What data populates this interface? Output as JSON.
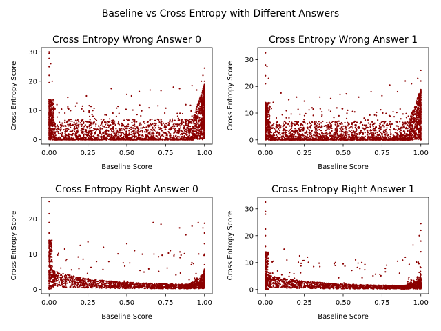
{
  "figure": {
    "suptitle": "Baseline vs Cross Entropy with Different Answers"
  },
  "chart_data": [
    {
      "type": "scatter",
      "title": "Cross Entropy Wrong Answer 0",
      "xlabel": "Baseline Score",
      "ylabel": "Cross Entropy Score",
      "xlim": [
        -0.05,
        1.05
      ],
      "ylim": [
        -1.5,
        31.5
      ],
      "xticks": [
        0.0,
        0.25,
        0.5,
        0.75,
        1.0
      ],
      "xtick_labels": [
        "0.00",
        "0.25",
        "0.50",
        "0.75",
        "1.00"
      ],
      "yticks": [
        0,
        10,
        20,
        30
      ],
      "ytick_labels": [
        "0",
        "10",
        "20",
        "30"
      ],
      "color": "#8b0000",
      "grid": false,
      "legend": "none",
      "points": [
        [
          0.0,
          30.0
        ],
        [
          0.0,
          29.5
        ],
        [
          0.0,
          27.8
        ],
        [
          0.0,
          25.0
        ],
        [
          0.0,
          22.0
        ],
        [
          0.0,
          19.5
        ],
        [
          0.01,
          26.0
        ],
        [
          0.02,
          20.0
        ],
        [
          0.03,
          9.5
        ],
        [
          0.05,
          12.0
        ],
        [
          0.08,
          10.5
        ],
        [
          0.12,
          14.5
        ],
        [
          0.18,
          12.5
        ],
        [
          0.24,
          15.0
        ],
        [
          0.3,
          7.0
        ],
        [
          0.36,
          8.5
        ],
        [
          0.4,
          17.5
        ],
        [
          0.45,
          9.0
        ],
        [
          0.5,
          15.5
        ],
        [
          0.53,
          15.0
        ],
        [
          0.58,
          16.5
        ],
        [
          0.65,
          17.0
        ],
        [
          0.72,
          16.8
        ],
        [
          0.8,
          18.0
        ],
        [
          0.84,
          17.5
        ],
        [
          0.88,
          12.0
        ],
        [
          0.92,
          18.5
        ],
        [
          0.95,
          17.0
        ],
        [
          0.98,
          20.0
        ],
        [
          0.99,
          22.0
        ],
        [
          1.0,
          24.5
        ],
        [
          1.0,
          20.0
        ],
        [
          1.0,
          17.0
        ],
        [
          1.0,
          14.0
        ],
        [
          0.15,
          3.0
        ],
        [
          0.3,
          2.0
        ],
        [
          0.45,
          2.5
        ],
        [
          0.6,
          3.0
        ],
        [
          0.75,
          3.5
        ],
        [
          0.9,
          5.5
        ]
      ]
    },
    {
      "type": "scatter",
      "title": "Cross Entropy Wrong Answer 1",
      "xlabel": "Baseline Score",
      "ylabel": "Cross Entropy Score",
      "xlim": [
        -0.05,
        1.05
      ],
      "ylim": [
        -1.6,
        34.5
      ],
      "xticks": [
        0.0,
        0.25,
        0.5,
        0.75,
        1.0
      ],
      "xtick_labels": [
        "0.00",
        "0.25",
        "0.50",
        "0.75",
        "1.00"
      ],
      "yticks": [
        0,
        10,
        20,
        30
      ],
      "ytick_labels": [
        "0",
        "10",
        "20",
        "30"
      ],
      "color": "#8b0000",
      "grid": false,
      "legend": "none",
      "points": [
        [
          0.0,
          32.5
        ],
        [
          0.0,
          28.0
        ],
        [
          0.0,
          24.0
        ],
        [
          0.0,
          21.0
        ],
        [
          0.01,
          27.5
        ],
        [
          0.02,
          23.0
        ],
        [
          0.05,
          14.0
        ],
        [
          0.1,
          17.5
        ],
        [
          0.15,
          15.0
        ],
        [
          0.2,
          16.0
        ],
        [
          0.25,
          14.5
        ],
        [
          0.3,
          12.0
        ],
        [
          0.35,
          16.0
        ],
        [
          0.42,
          15.5
        ],
        [
          0.48,
          17.0
        ],
        [
          0.52,
          17.2
        ],
        [
          0.6,
          16.0
        ],
        [
          0.68,
          18.0
        ],
        [
          0.75,
          16.5
        ],
        [
          0.8,
          20.5
        ],
        [
          0.85,
          18.0
        ],
        [
          0.9,
          22.0
        ],
        [
          0.94,
          21.0
        ],
        [
          0.98,
          23.0
        ],
        [
          1.0,
          26.0
        ],
        [
          1.0,
          22.0
        ],
        [
          1.0,
          18.0
        ],
        [
          0.2,
          3.0
        ],
        [
          0.45,
          2.5
        ],
        [
          0.7,
          3.5
        ],
        [
          0.9,
          6.0
        ]
      ]
    },
    {
      "type": "scatter",
      "title": "Cross Entropy Right Answer 0",
      "xlabel": "Baseline Score",
      "ylabel": "Cross Entropy Score",
      "xlim": [
        -0.05,
        1.05
      ],
      "ylim": [
        -1.25,
        26.2
      ],
      "xticks": [
        0.0,
        0.25,
        0.5,
        0.75,
        1.0
      ],
      "xtick_labels": [
        "0.00",
        "0.25",
        "0.50",
        "0.75",
        "1.00"
      ],
      "yticks": [
        0,
        10,
        20
      ],
      "ytick_labels": [
        "0",
        "10",
        "20"
      ],
      "color": "#8b0000",
      "grid": false,
      "legend": "none",
      "points": [
        [
          0.0,
          25.0
        ],
        [
          0.0,
          21.5
        ],
        [
          0.0,
          19.0
        ],
        [
          0.0,
          16.0
        ],
        [
          0.0,
          13.0
        ],
        [
          0.0,
          10.0
        ],
        [
          0.01,
          8.0
        ],
        [
          0.02,
          6.5
        ],
        [
          0.05,
          5.0
        ],
        [
          0.1,
          3.8
        ],
        [
          0.15,
          3.0
        ],
        [
          0.25,
          2.4
        ],
        [
          0.35,
          1.9
        ],
        [
          0.5,
          1.5
        ],
        [
          0.65,
          1.2
        ],
        [
          0.8,
          1.1
        ],
        [
          0.9,
          1.3
        ],
        [
          0.1,
          11.5
        ],
        [
          0.2,
          12.5
        ],
        [
          0.25,
          13.5
        ],
        [
          0.35,
          12.0
        ],
        [
          0.5,
          13.0
        ],
        [
          0.55,
          11.0
        ],
        [
          0.6,
          10.0
        ],
        [
          0.67,
          19.0
        ],
        [
          0.72,
          18.5
        ],
        [
          0.78,
          11.0
        ],
        [
          0.84,
          17.5
        ],
        [
          0.88,
          15.5
        ],
        [
          0.92,
          18.0
        ],
        [
          0.96,
          19.0
        ],
        [
          0.99,
          17.5
        ],
        [
          1.0,
          18.8
        ],
        [
          1.0,
          16.0
        ],
        [
          1.0,
          13.0
        ],
        [
          1.0,
          10.0
        ],
        [
          1.0,
          7.0
        ]
      ]
    },
    {
      "type": "scatter",
      "title": "Cross Entropy Right Answer 1",
      "xlabel": "Baseline Score",
      "ylabel": "Cross Entropy Score",
      "xlim": [
        -0.05,
        1.05
      ],
      "ylim": [
        -1.6,
        34.3
      ],
      "xticks": [
        0.0,
        0.25,
        0.5,
        0.75,
        1.0
      ],
      "xtick_labels": [
        "0.00",
        "0.25",
        "0.50",
        "0.75",
        "1.00"
      ],
      "yticks": [
        0,
        10,
        20,
        30
      ],
      "ytick_labels": [
        "0",
        "10",
        "20",
        "30"
      ],
      "color": "#8b0000",
      "grid": false,
      "legend": "none",
      "points": [
        [
          0.0,
          32.5
        ],
        [
          0.0,
          29.0
        ],
        [
          0.0,
          28.0
        ],
        [
          0.0,
          22.5
        ],
        [
          0.0,
          20.0
        ],
        [
          0.0,
          16.0
        ],
        [
          0.0,
          12.0
        ],
        [
          0.01,
          8.0
        ],
        [
          0.03,
          6.0
        ],
        [
          0.06,
          4.5
        ],
        [
          0.1,
          3.5
        ],
        [
          0.15,
          2.8
        ],
        [
          0.25,
          2.2
        ],
        [
          0.35,
          1.8
        ],
        [
          0.5,
          1.4
        ],
        [
          0.65,
          1.1
        ],
        [
          0.8,
          1.0
        ],
        [
          0.9,
          1.5
        ],
        [
          0.05,
          10.5
        ],
        [
          0.12,
          15.0
        ],
        [
          0.22,
          12.5
        ],
        [
          0.27,
          12.0
        ],
        [
          0.35,
          8.5
        ],
        [
          0.45,
          10.0
        ],
        [
          0.5,
          9.5
        ],
        [
          0.58,
          11.0
        ],
        [
          0.62,
          10.0
        ],
        [
          0.78,
          9.0
        ],
        [
          0.85,
          10.5
        ],
        [
          0.9,
          12.0
        ],
        [
          0.95,
          16.5
        ],
        [
          0.99,
          20.0
        ],
        [
          1.0,
          24.5
        ],
        [
          1.0,
          22.0
        ],
        [
          1.0,
          18.0
        ],
        [
          1.0,
          14.0
        ]
      ]
    }
  ]
}
